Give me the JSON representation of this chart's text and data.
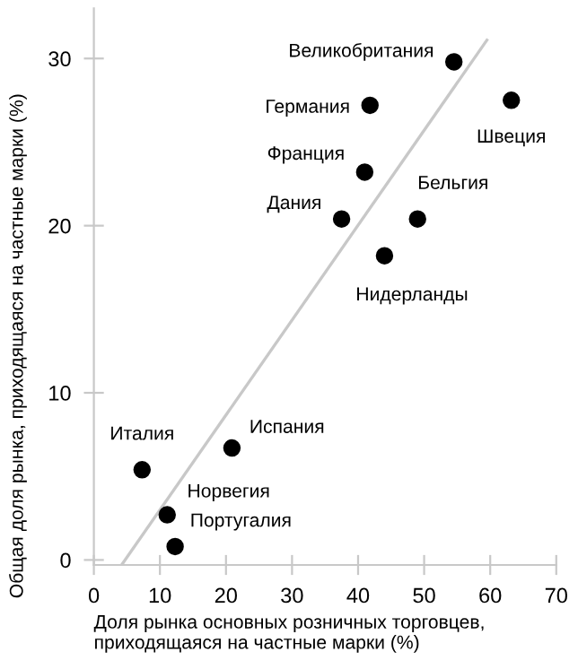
{
  "chart_data": {
    "type": "scatter",
    "xlabel": "Доля рынка основных розничных торговцев,\nприходящаяся на частные марки (%)",
    "ylabel": "Общая доля рынка, приходящаяся на частные марки (%)",
    "xlim": [
      0,
      70
    ],
    "xticks": [
      0,
      10,
      20,
      30,
      40,
      50,
      60,
      70
    ],
    "ylim": [
      -0.3,
      33
    ],
    "yticks": [
      0,
      10,
      20,
      30
    ],
    "grid": false,
    "legend": false,
    "series": [
      {
        "marker": "circle",
        "color": "#000000",
        "x": [
          54.5,
          41.8,
          63.2,
          41.0,
          37.5,
          49.0,
          44.0,
          20.9,
          7.3,
          11.1,
          12.3
        ],
        "values": [
          29.8,
          27.2,
          27.5,
          23.2,
          20.4,
          20.4,
          18.2,
          6.7,
          5.4,
          2.7,
          0.8
        ]
      },
      {
        "type": "line",
        "color": "#c8c8c8",
        "x": [
          4.2,
          59.5
        ],
        "values": [
          -0.3,
          31.1
        ]
      }
    ],
    "annotations": [
      {
        "text": "Великобритания",
        "x": 54.5,
        "y": 29.8
      },
      {
        "text": "Германия",
        "x": 41.8,
        "y": 27.2
      },
      {
        "text": "Швеция",
        "x": 63.2,
        "y": 27.5
      },
      {
        "text": "Франция",
        "x": 41.0,
        "y": 23.2
      },
      {
        "text": "Дания",
        "x": 37.5,
        "y": 20.4
      },
      {
        "text": "Бельгия",
        "x": 49.0,
        "y": 20.4
      },
      {
        "text": "Нидерланды",
        "x": 44.0,
        "y": 18.2
      },
      {
        "text": "Испания",
        "x": 20.9,
        "y": 6.7
      },
      {
        "text": "Италия",
        "x": 7.3,
        "y": 5.4
      },
      {
        "text": "Норвегия",
        "x": 11.1,
        "y": 2.7
      },
      {
        "text": "Португалия",
        "x": 12.3,
        "y": 0.8
      }
    ]
  }
}
